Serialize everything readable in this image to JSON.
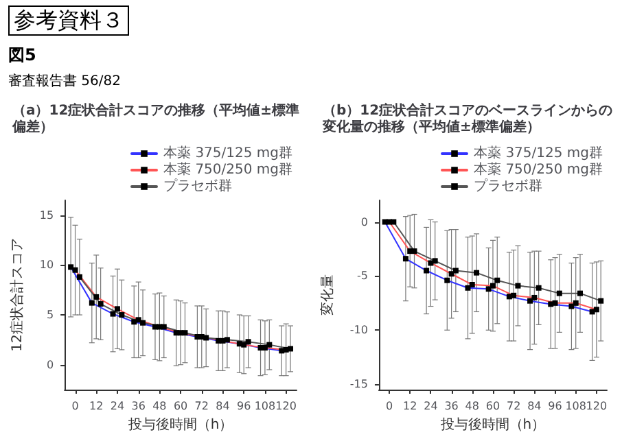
{
  "chart_data": [
    {
      "type": "line",
      "title": "（a）12症状合計スコアの推移（平均値±標準偏差）",
      "xlabel": "投与後時間（h）",
      "ylabel": "12症状合計スコア",
      "annotations": [
        "参考資料３",
        "図5",
        "審査報告書 56/82"
      ],
      "x": [
        0,
        12,
        24,
        36,
        48,
        60,
        72,
        84,
        96,
        108,
        120
      ],
      "series": [
        {
          "name": "本薬 375/125 mg群",
          "color": "#3333ff",
          "x": [
            -2.5,
            9.5,
            21.5,
            33.5,
            45.5,
            57.5,
            69.5,
            81.5,
            93.5,
            105.5,
            117.5
          ],
          "values": [
            9.8,
            6.2,
            5.1,
            4.3,
            3.8,
            3.2,
            2.8,
            2.4,
            2.1,
            1.7,
            1.4
          ],
          "errors": [
            5,
            4,
            3.8,
            3.6,
            3.3,
            3.3,
            3.1,
            3,
            2.9,
            2.8,
            2.5
          ]
        },
        {
          "name": "本薬 750/250 mg群",
          "color": "#ff5555",
          "values": [
            9.5,
            6.8,
            5.6,
            4.5,
            3.8,
            3.2,
            2.8,
            2.4,
            2.0,
            1.7,
            1.5
          ],
          "errors": [
            4.5,
            4.2,
            4,
            3.8,
            3.4,
            3.2,
            3.1,
            3,
            2.9,
            2.7,
            2.6
          ]
        },
        {
          "name": "プラセボ群",
          "color": "#555555",
          "x": [
            2.5,
            14.5,
            26.5,
            38.5,
            50.5,
            62.5,
            74.5,
            86.5,
            98.5,
            110.5,
            122.5
          ],
          "values": [
            8.8,
            6.1,
            5.0,
            4.2,
            3.8,
            3.2,
            2.7,
            2.5,
            2.3,
            2.0,
            1.6
          ],
          "errors": [
            3.8,
            3.6,
            3.5,
            3.3,
            3.1,
            3,
            2.9,
            2.8,
            2.6,
            2.5,
            2.3
          ]
        }
      ],
      "xlim": [
        -6,
        126
      ],
      "xticks": [
        0,
        12,
        24,
        36,
        48,
        60,
        72,
        84,
        96,
        108,
        120
      ],
      "ylim": [
        -2.5,
        16.5
      ],
      "yticks": [
        0,
        5,
        10,
        15
      ],
      "marker": "square",
      "line_style": "solid",
      "grid": false,
      "legend": "top right"
    },
    {
      "type": "line",
      "title": "（b）12症状合計スコアのベースラインからの変化量の推移（平均値±標準偏差）",
      "xlabel": "投与後時間（h）",
      "ylabel": "変化量",
      "x": [
        0,
        12,
        24,
        36,
        48,
        60,
        72,
        84,
        96,
        108,
        120
      ],
      "series": [
        {
          "name": "本薬 375/125 mg群",
          "color": "#3333ff",
          "x": [
            -2.5,
            9.5,
            21.5,
            33.5,
            45.5,
            57.5,
            69.5,
            81.5,
            93.5,
            105.5,
            117.5
          ],
          "values": [
            0,
            -3.4,
            -4.5,
            -5.4,
            -6.1,
            -6.2,
            -6.9,
            -7.3,
            -7.6,
            -7.8,
            -8.3
          ],
          "errors": [
            0,
            3.9,
            4,
            4.6,
            4.7,
            3.8,
            4.1,
            4.5,
            4.1,
            4,
            4.5
          ]
        },
        {
          "name": "本薬 750/250 mg群",
          "color": "#ff5555",
          "values": [
            0,
            -2.7,
            -3.8,
            -4.8,
            -5.8,
            -5.9,
            -6.8,
            -7.0,
            -7.5,
            -7.5,
            -8.1
          ],
          "errors": [
            0,
            3.3,
            4,
            4.1,
            4.5,
            4.2,
            4.2,
            4.3,
            4.2,
            4.2,
            4.4
          ]
        },
        {
          "name": "プラセボ群",
          "color": "#555555",
          "x": [
            2.5,
            14.5,
            26.5,
            38.5,
            50.5,
            62.5,
            74.5,
            86.5,
            98.5,
            110.5,
            122.5
          ],
          "values": [
            0,
            -2.7,
            -3.6,
            -4.5,
            -4.7,
            -5.4,
            -5.9,
            -6.1,
            -6.6,
            -6.6,
            -7.3
          ],
          "errors": [
            0,
            3.4,
            3.6,
            3.8,
            3.6,
            4,
            3.7,
            3.4,
            3.6,
            3.6,
            3.7
          ]
        }
      ],
      "xlim": [
        -6,
        126
      ],
      "xticks": [
        0,
        12,
        24,
        36,
        48,
        60,
        72,
        84,
        96,
        108,
        120
      ],
      "ylim": [
        -15.5,
        2
      ],
      "yticks": [
        -15,
        -10,
        -5,
        0
      ],
      "marker": "square",
      "line_style": "solid",
      "grid": false,
      "legend": "top right"
    }
  ]
}
